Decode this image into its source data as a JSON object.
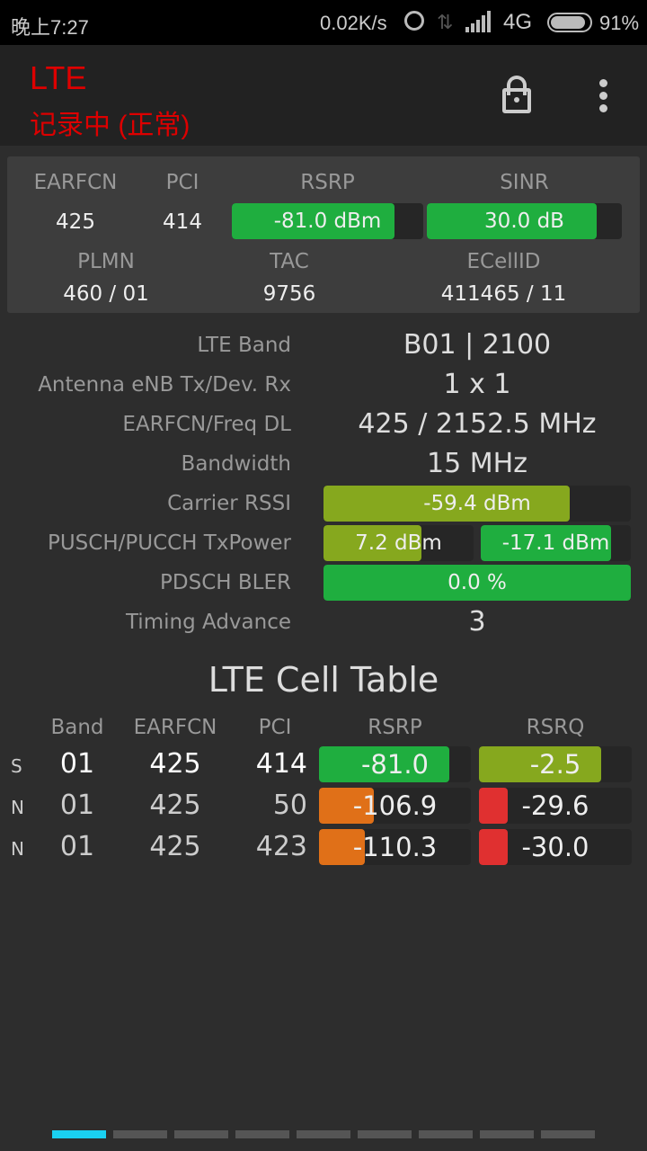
{
  "status_bar": {
    "time": "晚上7:27",
    "speed": "0.02K/s",
    "network": "4G",
    "battery": "91%"
  },
  "app_bar": {
    "title": "LTE",
    "subtitle": "记录中 (正常)",
    "icons": [
      "lock-open-icon",
      "more-vert-icon"
    ]
  },
  "summary": {
    "headers": {
      "earfcn": "EARFCN",
      "pci": "PCI",
      "rsrp": "RSRP",
      "sinr": "SINR",
      "plmn": "PLMN",
      "tac": "TAC",
      "ecellid": "ECellID"
    },
    "earfcn": "425",
    "pci": "414",
    "rsrp": {
      "text": "-81.0 dBm",
      "level": 0.85,
      "color": "#1fae3f"
    },
    "sinr": {
      "text": "30.0 dB",
      "level": 0.87,
      "color": "#1fae3f"
    },
    "plmn": "460 / 01",
    "tac": "9756",
    "ecellid": "411465 / 11"
  },
  "details": {
    "lte_band": {
      "label": "LTE Band",
      "value": "B01 | 2100"
    },
    "antenna": {
      "label": "Antenna eNB Tx/Dev. Rx",
      "value": "1 x 1"
    },
    "earfcn_freq": {
      "label": "EARFCN/Freq DL",
      "value": "425 / 2152.5 MHz"
    },
    "bandwidth": {
      "label": "Bandwidth",
      "value": "15 MHz"
    },
    "rssi": {
      "label": "Carrier RSSI",
      "text": "-59.4 dBm",
      "level": 0.8,
      "color": "#86a81e"
    },
    "txpower": {
      "label": "PUSCH/PUCCH TxPower",
      "pusch": {
        "text": "7.2 dBm",
        "level": 0.65,
        "color": "#86a81e"
      },
      "pucch": {
        "text": "-17.1 dBm",
        "level": 0.87,
        "color": "#1fae3f"
      }
    },
    "bler": {
      "label": "PDSCH BLER",
      "text": "0.0 %",
      "level": 1.0,
      "color": "#1fae3f"
    },
    "timing_advance": {
      "label": "Timing Advance",
      "value": "3"
    }
  },
  "cell_table": {
    "title": "LTE Cell Table",
    "headers": [
      "Band",
      "EARFCN",
      "PCI",
      "RSRP",
      "RSRQ"
    ],
    "rows": [
      {
        "type": "S",
        "band": "01",
        "earfcn": "425",
        "pci": "414",
        "rsrp": {
          "text": "-81.0",
          "level": 0.86,
          "color": "#1fae3f"
        },
        "rsrq": {
          "text": "-2.5",
          "level": 0.8,
          "color": "#86a81e"
        }
      },
      {
        "type": "N",
        "band": "01",
        "earfcn": "425",
        "pci": "50",
        "rsrp": {
          "text": "-106.9",
          "level": 0.36,
          "color": "#e07018"
        },
        "rsrq": {
          "text": "-29.6",
          "level": 0.19,
          "color": "#e03030"
        }
      },
      {
        "type": "N",
        "band": "01",
        "earfcn": "425",
        "pci": "423",
        "rsrp": {
          "text": "-110.3",
          "level": 0.3,
          "color": "#e07018"
        },
        "rsrq": {
          "text": "-30.0",
          "level": 0.19,
          "color": "#e03030"
        }
      }
    ]
  },
  "pager": {
    "pages": 9,
    "current": 1,
    "active_color": "#1ad0f0"
  }
}
